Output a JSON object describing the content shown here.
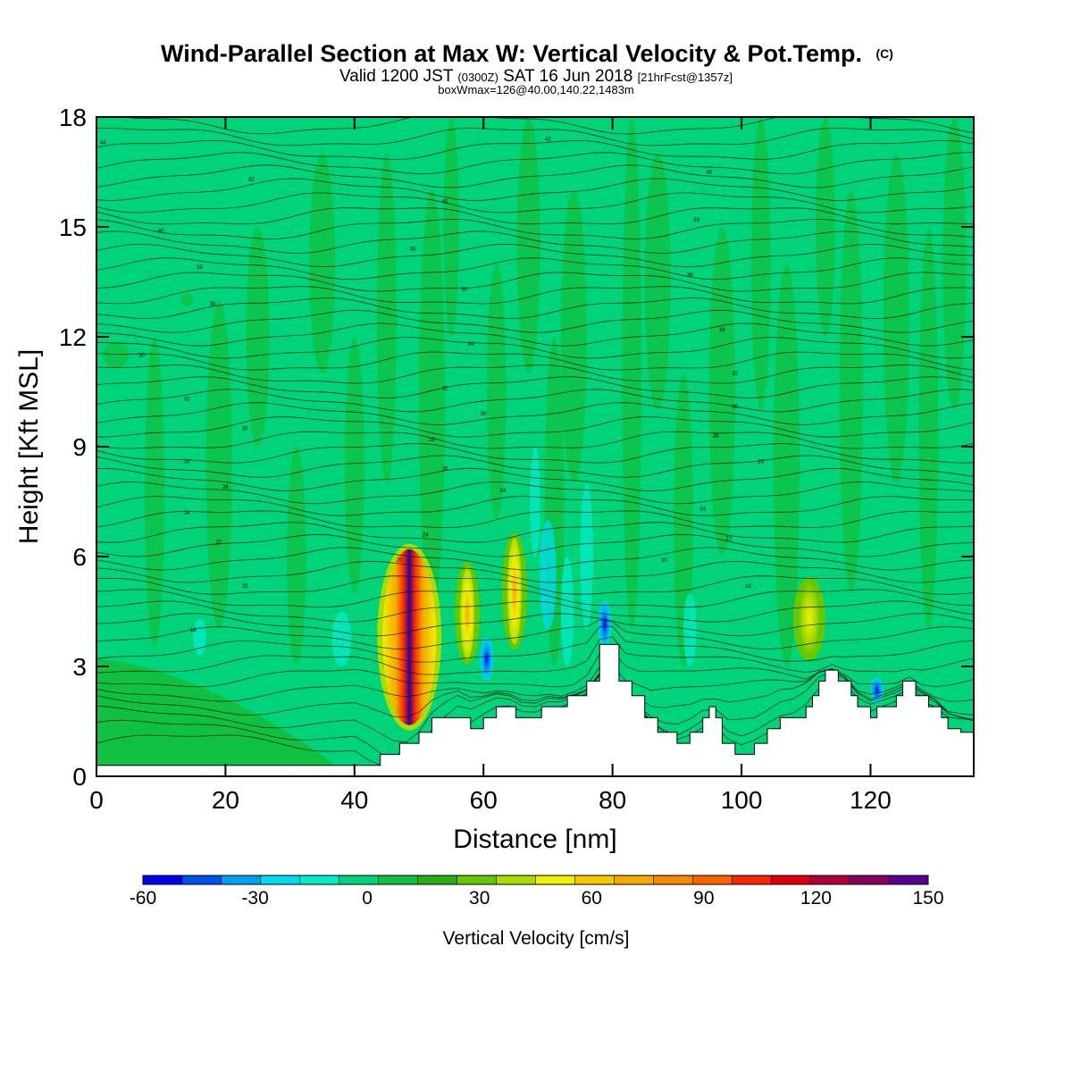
{
  "chart_data": {
    "type": "heatmap",
    "title": "Wind-Parallel Section at Max W: Vertical Velocity & Pot.Temp.",
    "title_mark": "(C)",
    "subtitle_parts": [
      "Valid 1200 JST",
      "(0300Z)",
      "SAT 16 Jun 2018",
      "[21hrFcst@1357z]"
    ],
    "subtitle2": "boxWmax=126@40.00,140.22,1483m",
    "xlabel": "Distance [nm]",
    "ylabel": "Height [Kft MSL]",
    "xlim": [
      0,
      136
    ],
    "ylim": [
      0,
      18
    ],
    "x_ticks": [
      "0",
      "20",
      "40",
      "60",
      "80",
      "100",
      "120"
    ],
    "y_ticks": [
      "0",
      "3",
      "6",
      "9",
      "12",
      "15",
      "18"
    ],
    "background_value_cm_s": 0,
    "updraft_cores": [
      {
        "x_nm": 48.5,
        "top_kft": 6.2,
        "bottom_kft": 1.4,
        "max_cm_s": 126
      },
      {
        "x_nm": 57.5,
        "top_kft": 5.7,
        "bottom_kft": 3.2,
        "max_cm_s": 55
      },
      {
        "x_nm": 64.8,
        "top_kft": 6.5,
        "bottom_kft": 3.6,
        "max_cm_s": 60
      },
      {
        "x_nm": 110.5,
        "top_kft": 5.3,
        "bottom_kft": 3.3,
        "max_cm_s": 35
      }
    ],
    "downdraft_cores": [
      {
        "x_nm": 60.5,
        "top_kft": 3.8,
        "bottom_kft": 2.6,
        "min_cm_s": -45
      },
      {
        "x_nm": 78.8,
        "top_kft": 4.8,
        "bottom_kft": 3.5,
        "min_cm_s": -60
      },
      {
        "x_nm": 121,
        "top_kft": 2.7,
        "bottom_kft": 2.0,
        "min_cm_s": -45
      }
    ],
    "terrain_kft": [
      [
        0,
        0.3
      ],
      [
        44,
        0.3
      ],
      [
        44,
        0.6
      ],
      [
        47,
        0.6
      ],
      [
        47,
        0.9
      ],
      [
        50,
        0.9
      ],
      [
        50,
        1.2
      ],
      [
        52,
        1.2
      ],
      [
        52,
        1.6
      ],
      [
        58,
        1.6
      ],
      [
        58,
        1.3
      ],
      [
        60,
        1.3
      ],
      [
        60,
        1.6
      ],
      [
        62,
        1.6
      ],
      [
        62,
        1.9
      ],
      [
        65,
        1.9
      ],
      [
        65,
        1.6
      ],
      [
        69,
        1.6
      ],
      [
        69,
        1.9
      ],
      [
        73,
        1.9
      ],
      [
        73,
        2.2
      ],
      [
        76,
        2.2
      ],
      [
        76,
        2.6
      ],
      [
        78,
        2.6
      ],
      [
        78,
        3.6
      ],
      [
        81,
        3.6
      ],
      [
        81,
        2.6
      ],
      [
        83,
        2.6
      ],
      [
        83,
        2.2
      ],
      [
        85,
        2.2
      ],
      [
        85,
        1.6
      ],
      [
        87,
        1.6
      ],
      [
        87,
        1.2
      ],
      [
        90,
        1.2
      ],
      [
        90,
        0.9
      ],
      [
        92,
        0.9
      ],
      [
        92,
        1.2
      ],
      [
        94,
        1.2
      ],
      [
        94,
        1.6
      ],
      [
        95,
        1.6
      ],
      [
        95,
        1.9
      ],
      [
        96,
        1.9
      ],
      [
        96,
        1.6
      ],
      [
        97,
        1.6
      ],
      [
        97,
        0.9
      ],
      [
        99,
        0.9
      ],
      [
        99,
        0.6
      ],
      [
        102,
        0.6
      ],
      [
        102,
        0.9
      ],
      [
        104,
        0.9
      ],
      [
        104,
        1.3
      ],
      [
        106,
        1.3
      ],
      [
        106,
        1.6
      ],
      [
        110,
        1.6
      ],
      [
        110,
        1.9
      ],
      [
        111,
        1.9
      ],
      [
        111,
        2.2
      ],
      [
        112,
        2.2
      ],
      [
        112,
        2.6
      ],
      [
        113,
        2.6
      ],
      [
        113,
        2.9
      ],
      [
        115,
        2.9
      ],
      [
        115,
        2.6
      ],
      [
        117,
        2.6
      ],
      [
        117,
        2.2
      ],
      [
        118,
        2.2
      ],
      [
        118,
        1.9
      ],
      [
        120,
        1.9
      ],
      [
        120,
        1.6
      ],
      [
        121,
        1.6
      ],
      [
        121,
        1.9
      ],
      [
        124,
        1.9
      ],
      [
        124,
        2.2
      ],
      [
        125,
        2.2
      ],
      [
        125,
        2.6
      ],
      [
        127,
        2.6
      ],
      [
        127,
        2.2
      ],
      [
        129,
        2.2
      ],
      [
        129,
        1.9
      ],
      [
        131,
        1.9
      ],
      [
        131,
        1.6
      ],
      [
        132,
        1.6
      ],
      [
        132,
        1.3
      ],
      [
        134,
        1.3
      ],
      [
        134,
        1.2
      ],
      [
        136,
        1.2
      ]
    ],
    "theta_contour_labels": [
      {
        "x": 1,
        "y": 17.3,
        "text": "44"
      },
      {
        "x": 24,
        "y": 16.3,
        "text": "42"
      },
      {
        "x": 10,
        "y": 14.9,
        "text": "40"
      },
      {
        "x": 16,
        "y": 13.9,
        "text": "38"
      },
      {
        "x": 18,
        "y": 12.9,
        "text": "36"
      },
      {
        "x": 7,
        "y": 11.5,
        "text": "30"
      },
      {
        "x": 14,
        "y": 10.3,
        "text": "32"
      },
      {
        "x": 23,
        "y": 9.5,
        "text": "30"
      },
      {
        "x": 14,
        "y": 8.6,
        "text": "28"
      },
      {
        "x": 20,
        "y": 7.9,
        "text": "26"
      },
      {
        "x": 14,
        "y": 7.2,
        "text": "24"
      },
      {
        "x": 19,
        "y": 6.4,
        "text": "22"
      },
      {
        "x": 23,
        "y": 5.2,
        "text": "20"
      },
      {
        "x": 15,
        "y": 4.0,
        "text": "18"
      },
      {
        "x": 70,
        "y": 17.4,
        "text": "42"
      },
      {
        "x": 95,
        "y": 16.5,
        "text": "40"
      },
      {
        "x": 54,
        "y": 15.7,
        "text": "40"
      },
      {
        "x": 93,
        "y": 15.2,
        "text": "38"
      },
      {
        "x": 49,
        "y": 14.4,
        "text": "38"
      },
      {
        "x": 92,
        "y": 13.7,
        "text": "36"
      },
      {
        "x": 57,
        "y": 13.3,
        "text": "36"
      },
      {
        "x": 97,
        "y": 12.2,
        "text": "34"
      },
      {
        "x": 58,
        "y": 11.8,
        "text": "34"
      },
      {
        "x": 99,
        "y": 11.0,
        "text": "32"
      },
      {
        "x": 54,
        "y": 10.6,
        "text": "32"
      },
      {
        "x": 99,
        "y": 10.1,
        "text": "30"
      },
      {
        "x": 60,
        "y": 9.9,
        "text": "30"
      },
      {
        "x": 96,
        "y": 9.3,
        "text": "28"
      },
      {
        "x": 52,
        "y": 9.2,
        "text": "28"
      },
      {
        "x": 103,
        "y": 8.6,
        "text": "28"
      },
      {
        "x": 54,
        "y": 8.4,
        "text": "26"
      },
      {
        "x": 63,
        "y": 7.8,
        "text": "24"
      },
      {
        "x": 94,
        "y": 7.3,
        "text": "24"
      },
      {
        "x": 51,
        "y": 6.6,
        "text": "24"
      },
      {
        "x": 98,
        "y": 6.5,
        "text": "22"
      },
      {
        "x": 88,
        "y": 5.9,
        "text": "20"
      },
      {
        "x": 47,
        "y": 5.9,
        "text": "20"
      },
      {
        "x": 101,
        "y": 5.2,
        "text": "18"
      }
    ]
  },
  "colorbar": {
    "label": "Vertical Velocity [cm/s]",
    "tick_labels": [
      "-60",
      "-30",
      "0",
      "30",
      "60",
      "90",
      "120",
      "150"
    ],
    "min": -60,
    "max": 150,
    "step": 10,
    "colors": [
      "#0000ee",
      "#0050f0",
      "#00a0f0",
      "#00dcf0",
      "#00eccc",
      "#00d47a",
      "#10c040",
      "#2aae14",
      "#66c800",
      "#aadc00",
      "#f0f000",
      "#f5c800",
      "#f5aa00",
      "#f58c00",
      "#f56400",
      "#f52800",
      "#dd0010",
      "#b0003c",
      "#880060",
      "#5a0090"
    ]
  }
}
